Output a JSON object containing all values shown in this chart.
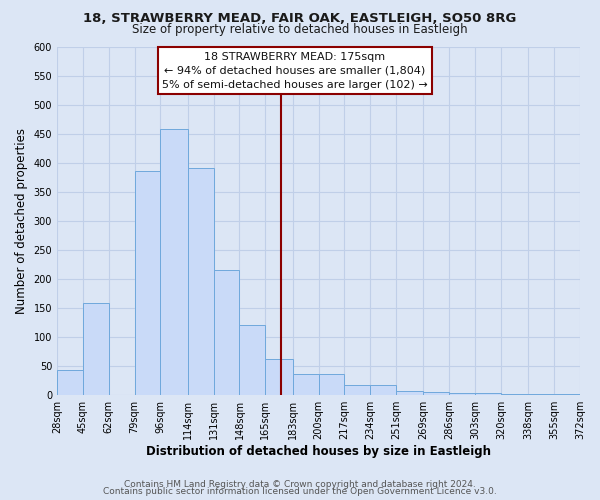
{
  "title_line1": "18, STRAWBERRY MEAD, FAIR OAK, EASTLEIGH, SO50 8RG",
  "title_line2": "Size of property relative to detached houses in Eastleigh",
  "xlabel": "Distribution of detached houses by size in Eastleigh",
  "ylabel": "Number of detached properties",
  "bin_edges": [
    28,
    45,
    62,
    79,
    96,
    114,
    131,
    148,
    165,
    183,
    200,
    217,
    234,
    251,
    269,
    286,
    303,
    320,
    338,
    355,
    372
  ],
  "bar_heights": [
    42,
    158,
    0,
    385,
    458,
    390,
    215,
    120,
    62,
    35,
    35,
    16,
    16,
    7,
    5,
    3,
    3,
    2,
    2,
    2
  ],
  "bar_color": "#c9daf8",
  "bar_edge_color": "#6fa8dc",
  "vline_x": 175,
  "vline_color": "#8b0000",
  "ylim": [
    0,
    600
  ],
  "yticks": [
    0,
    50,
    100,
    150,
    200,
    250,
    300,
    350,
    400,
    450,
    500,
    550,
    600
  ],
  "xtick_labels": [
    "28sqm",
    "45sqm",
    "62sqm",
    "79sqm",
    "96sqm",
    "114sqm",
    "131sqm",
    "148sqm",
    "165sqm",
    "183sqm",
    "200sqm",
    "217sqm",
    "234sqm",
    "251sqm",
    "269sqm",
    "286sqm",
    "303sqm",
    "320sqm",
    "338sqm",
    "355sqm",
    "372sqm"
  ],
  "annotation_title": "18 STRAWBERRY MEAD: 175sqm",
  "annotation_line1": "← 94% of detached houses are smaller (1,804)",
  "annotation_line2": "5% of semi-detached houses are larger (102) →",
  "annotation_box_color": "#ffffff",
  "annotation_box_edge": "#8b0000",
  "footer_line1": "Contains HM Land Registry data © Crown copyright and database right 2024.",
  "footer_line2": "Contains public sector information licensed under the Open Government Licence v3.0.",
  "bg_color": "#dce6f5",
  "plot_bg_color": "#dce6f5",
  "grid_color": "#c0cfe8",
  "title_fontsize": 9.5,
  "subtitle_fontsize": 8.5,
  "axis_label_fontsize": 8.5,
  "tick_fontsize": 7,
  "footer_fontsize": 6.5,
  "ann_fontsize": 8
}
